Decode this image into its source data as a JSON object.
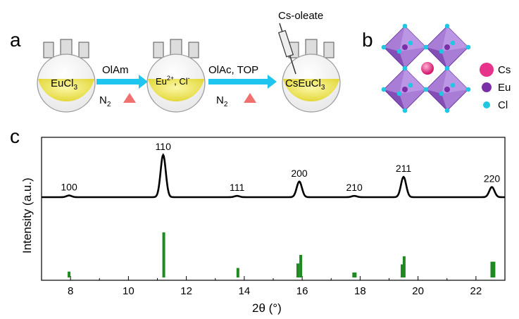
{
  "panels": {
    "a": "a",
    "b": "b",
    "c": "c"
  },
  "scheme": {
    "flask1": "EuCl",
    "flask1_sub": "3",
    "flask2_eu": "Eu",
    "flask2_sup": "2+",
    "flask2_cl": ", Cl",
    "flask2_sup2": "-",
    "flask3": "CsEuCl",
    "flask3_sub": "3",
    "syringe_label": "Cs-oleate",
    "arrow1_top": "OlAm",
    "arrow1_bottom": "N",
    "arrow1_bottom_sub": "2",
    "arrow2_top": "OlAc, TOP",
    "arrow2_bottom": "N",
    "arrow2_bottom_sub": "2"
  },
  "structure_legend": [
    {
      "label": "Cs",
      "color": "#e8338a"
    },
    {
      "label": "Eu",
      "color": "#7a2fa8"
    },
    {
      "label": "Cl",
      "color": "#1fc7e3"
    }
  ],
  "chart_data": {
    "type": "line",
    "xlabel": "2θ (°)",
    "ylabel": "Intensity (a.u.)",
    "xlim": [
      7,
      23
    ],
    "xticks": [
      8,
      10,
      12,
      14,
      16,
      18,
      20,
      22
    ],
    "series": [
      {
        "role": "measured-xrd",
        "color": "#000000",
        "peaks": [
          {
            "x": 7.95,
            "intensity": 0.04,
            "label": "100"
          },
          {
            "x": 11.2,
            "intensity": 1.0,
            "label": "110"
          },
          {
            "x": 13.75,
            "intensity": 0.03,
            "label": "111"
          },
          {
            "x": 15.9,
            "intensity": 0.37,
            "label": "200"
          },
          {
            "x": 17.8,
            "intensity": 0.03,
            "label": "210"
          },
          {
            "x": 19.5,
            "intensity": 0.48,
            "label": "211"
          },
          {
            "x": 22.55,
            "intensity": 0.24,
            "label": "220"
          }
        ]
      },
      {
        "role": "reference-pattern",
        "color": "#1f8a1f",
        "sticks": [
          {
            "x": 7.95,
            "intensity": 0.13
          },
          {
            "x": 11.22,
            "intensity": 1.0
          },
          {
            "x": 13.78,
            "intensity": 0.21
          },
          {
            "x": 15.85,
            "intensity": 0.31
          },
          {
            "x": 15.95,
            "intensity": 0.5
          },
          {
            "x": 17.78,
            "intensity": 0.11
          },
          {
            "x": 17.83,
            "intensity": 0.11
          },
          {
            "x": 19.45,
            "intensity": 0.29
          },
          {
            "x": 19.52,
            "intensity": 0.47
          },
          {
            "x": 22.55,
            "intensity": 0.35
          },
          {
            "x": 22.62,
            "intensity": 0.35
          }
        ]
      }
    ]
  }
}
